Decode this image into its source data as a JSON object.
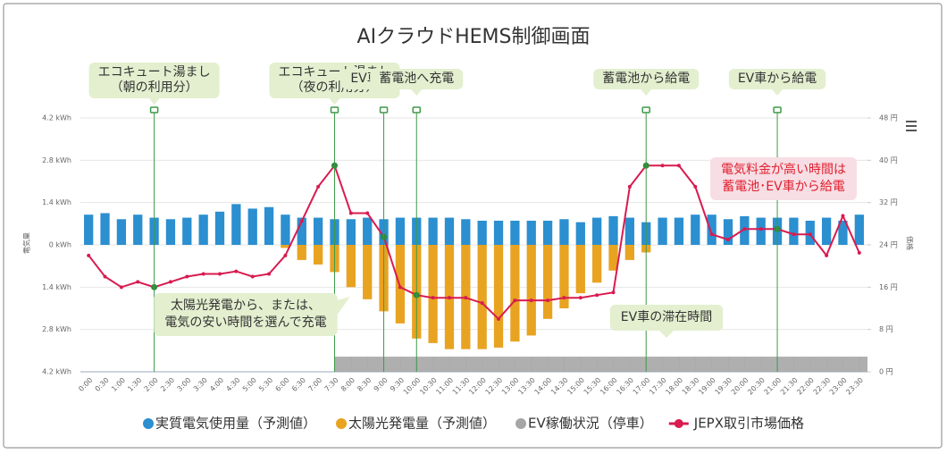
{
  "chart_data": {
    "type": "bar",
    "title": "AIクラウドHEMS制御画面",
    "y_label": "電気量",
    "y2_label": "価格",
    "categories": [
      "0:00",
      "0:30",
      "1:00",
      "1:30",
      "2:00",
      "2:30",
      "3:00",
      "3:30",
      "4:00",
      "4:30",
      "5:00",
      "5:30",
      "6:00",
      "6:30",
      "7:00",
      "7:30",
      "8:00",
      "8:30",
      "9:00",
      "9:30",
      "10:00",
      "10:30",
      "11:00",
      "11:30",
      "12:00",
      "12:30",
      "13:00",
      "13:30",
      "14:00",
      "14:30",
      "15:00",
      "15:30",
      "16:00",
      "16:30",
      "17:00",
      "17:30",
      "18:00",
      "18:30",
      "19:00",
      "19:30",
      "20:00",
      "20:30",
      "21:00",
      "21:30",
      "22:00",
      "22:30",
      "23:00",
      "23:30"
    ],
    "ylim": [
      -4.2,
      4.2
    ],
    "yticks": [
      {
        "value": 4.2,
        "label": "4.2 kWh"
      },
      {
        "value": 2.8,
        "label": "2.8 kWh"
      },
      {
        "value": 1.4,
        "label": "1.4 kWh"
      },
      {
        "value": 0,
        "label": "0 kWh"
      },
      {
        "value": -1.4,
        "label": "1.4 kWh"
      },
      {
        "value": -2.8,
        "label": "2.8 kWh"
      },
      {
        "value": -4.2,
        "label": "4.2 kWh"
      }
    ],
    "y2lim": [
      0,
      48
    ],
    "y2ticks": [
      {
        "value": 48,
        "label": "48 円"
      },
      {
        "value": 40,
        "label": "40 円"
      },
      {
        "value": 32,
        "label": "32 円"
      },
      {
        "value": 24,
        "label": "24 円"
      },
      {
        "value": 16,
        "label": "16 円"
      },
      {
        "value": 8,
        "label": "8 円"
      },
      {
        "value": 0,
        "label": "0 円"
      }
    ],
    "grid": true,
    "series": [
      {
        "name": "実質電気使用量（予測値）",
        "type": "bar",
        "color": "#2b8fd0",
        "values": [
          1.0,
          1.05,
          0.85,
          1.0,
          0.9,
          0.85,
          0.9,
          1.0,
          1.1,
          1.35,
          1.2,
          1.25,
          1.0,
          0.9,
          0.9,
          0.85,
          0.85,
          0.9,
          0.85,
          0.9,
          0.9,
          0.9,
          0.9,
          0.85,
          0.8,
          0.8,
          0.8,
          0.8,
          0.8,
          0.85,
          0.75,
          0.9,
          0.95,
          0.9,
          0.75,
          0.9,
          0.9,
          1.0,
          1.0,
          0.85,
          0.95,
          0.9,
          0.9,
          0.9,
          0.8,
          0.9,
          0.8,
          1.0
        ]
      },
      {
        "name": "太陽光発電量（予測値）",
        "type": "bar",
        "color": "#e8a321",
        "values": [
          0,
          0,
          0,
          0,
          0,
          0,
          0,
          0,
          0,
          0,
          0,
          0,
          -0.1,
          -0.5,
          -0.65,
          -0.9,
          -1.4,
          -1.8,
          -2.2,
          -2.6,
          -3.1,
          -3.25,
          -3.45,
          -3.45,
          -3.45,
          -3.4,
          -3.2,
          -3.0,
          -2.45,
          -2.1,
          -1.6,
          -1.25,
          -0.85,
          -0.5,
          -0.25,
          0,
          0,
          0,
          0,
          0,
          0,
          0,
          0,
          0,
          0,
          0,
          0,
          0
        ]
      },
      {
        "name": "EV稼働状況（停車）",
        "type": "band",
        "color": "#a6a6a6",
        "values": [
          null,
          null,
          null,
          null,
          null,
          null,
          null,
          null,
          null,
          null,
          null,
          null,
          null,
          null,
          null,
          -3.7,
          -3.7,
          -3.7,
          -3.7,
          -3.7,
          -3.7,
          -3.7,
          -3.7,
          -3.7,
          -3.7,
          -3.7,
          -3.7,
          -3.7,
          -3.7,
          -3.7,
          -3.7,
          -3.7,
          -3.7,
          -3.7,
          -3.7,
          -3.7,
          -3.7,
          -3.7,
          -3.7,
          -3.7,
          -3.7,
          -3.7,
          -3.7,
          -3.7,
          -3.7,
          -3.7,
          -3.7,
          -3.7
        ]
      },
      {
        "name": "JEPX取引市場価格",
        "type": "line",
        "axis": "y2",
        "color": "#d81b50",
        "values": [
          22,
          18,
          16,
          17,
          16,
          17,
          18,
          18.5,
          18.5,
          19,
          18,
          18.5,
          22,
          28.5,
          35,
          39,
          30,
          30,
          25.5,
          16,
          14.5,
          14,
          14,
          14,
          13,
          10,
          13.5,
          13.5,
          13.5,
          14,
          14,
          14.5,
          15,
          35,
          39,
          39,
          39,
          35,
          26,
          25,
          27,
          27,
          27,
          26,
          26,
          22,
          29.5,
          22.5
        ]
      }
    ],
    "events": [
      {
        "at": "2:00",
        "lines": [
          "エコキュート湯まし",
          "（朝の利用分）"
        ]
      },
      {
        "at": "7:30",
        "lines": [
          "エコキュート湯まし",
          "（夜の利用分）"
        ]
      },
      {
        "at": "9:00",
        "lines": [
          "EV車へ充電"
        ]
      },
      {
        "at": "10:00",
        "lines": [
          "蓄電池へ充電"
        ]
      },
      {
        "at": "17:00",
        "lines": [
          "蓄電池から給電"
        ]
      },
      {
        "at": "21:00",
        "lines": [
          "EV車から給電"
        ]
      }
    ],
    "notes": [
      {
        "lines": [
          "太陽光発電から、または、",
          "電気の安い時間を選んで充電"
        ]
      },
      {
        "lines": [
          "EV車の滞在時間"
        ]
      },
      {
        "lines": [
          "電気料金が高い時間は",
          "蓄電池･EV車から給電"
        ]
      }
    ]
  }
}
